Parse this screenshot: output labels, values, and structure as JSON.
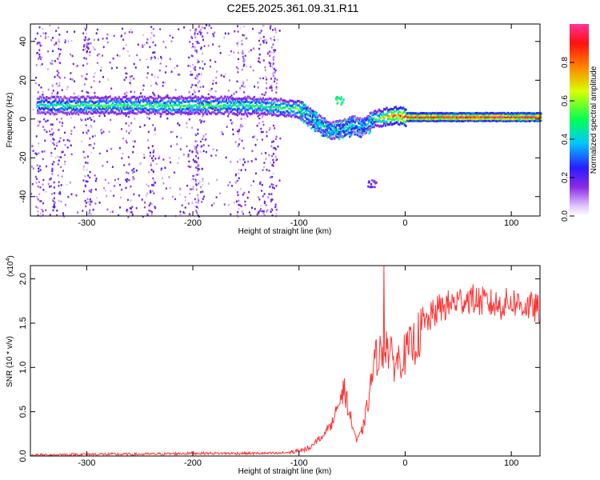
{
  "title": "C2E5.2025.361.09.31.R11",
  "chart_data": [
    {
      "type": "heatmap",
      "description_free": true,
      "xlabel": "Height of straight line (km)",
      "ylabel": "Frequency (Hz)",
      "xlim": [
        -353,
        127
      ],
      "ylim": [
        -50,
        49
      ],
      "xticks": [
        -300,
        -200,
        -100,
        0,
        100
      ],
      "xtick_labels": [
        "-300",
        "-200",
        "-100",
        "0",
        "100"
      ],
      "yticks": [
        -40,
        -20,
        0,
        20,
        40
      ],
      "ytick_labels": [
        "-40",
        "-20",
        "0",
        "20",
        "40"
      ],
      "colorbar": {
        "label": "Normalized spectral amplitude",
        "range": [
          0,
          1
        ],
        "ticks": [
          0.0,
          0.2,
          0.4,
          0.6,
          0.8
        ],
        "tick_labels": [
          "0.0",
          "0.2",
          "0.4",
          "0.6",
          "0.8"
        ]
      },
      "ridge": {
        "x": [
          -345,
          -300,
          -250,
          -200,
          -150,
          -120,
          -100,
          -90,
          -80,
          -70,
          -60,
          -50,
          -40,
          -30,
          -20,
          -10,
          0,
          50,
          100,
          127
        ],
        "freq": [
          7,
          7,
          7,
          7,
          7,
          6,
          5,
          1,
          -3,
          -6,
          -5,
          -3,
          -4,
          0,
          1,
          2,
          1,
          1,
          1,
          1
        ],
        "amplitude": [
          0.45,
          0.5,
          0.5,
          0.5,
          0.5,
          0.5,
          0.55,
          0.5,
          0.45,
          0.45,
          0.45,
          0.4,
          0.4,
          0.5,
          0.7,
          0.8,
          0.9,
          0.95,
          0.95,
          0.95
        ]
      },
      "secondary_blobs": [
        {
          "x": -62,
          "freq": 10,
          "amplitude": 0.55
        },
        {
          "x": -32,
          "freq": -33,
          "amplitude": 0.2
        }
      ],
      "noise_region": {
        "x_from": -353,
        "x_to": -118,
        "freq_from": -50,
        "freq_to": 49,
        "amplitude": 0.15
      }
    },
    {
      "type": "line",
      "xlabel": "Height of straight line (km)",
      "ylabel": "SNR (10 * v/v)",
      "scale_label": "(x10",
      "scale_exponent": "4",
      "scale_suffix": ")",
      "xlim": [
        -353,
        127
      ],
      "ylim": [
        0,
        2.15
      ],
      "xticks": [
        -300,
        -200,
        -100,
        0,
        100
      ],
      "xtick_labels": [
        "-300",
        "-200",
        "-100",
        "0",
        "100"
      ],
      "yticks": [
        0.0,
        0.5,
        1.0,
        1.5,
        2.0
      ],
      "ytick_labels": [
        "0.0",
        "0.5",
        "1.0",
        "1.5",
        "2.0"
      ],
      "color": "#ff3333",
      "x": [
        -353,
        -300,
        -250,
        -200,
        -150,
        -120,
        -100,
        -90,
        -80,
        -70,
        -62,
        -57,
        -52,
        -45,
        -40,
        -35,
        -30,
        -25,
        -22,
        -20,
        -18,
        -15,
        -10,
        -5,
        0,
        10,
        20,
        30,
        40,
        50,
        60,
        70,
        80,
        90,
        100,
        110,
        120,
        127
      ],
      "snr": [
        0.01,
        0.02,
        0.02,
        0.03,
        0.03,
        0.03,
        0.05,
        0.1,
        0.2,
        0.35,
        0.6,
        0.75,
        0.45,
        0.15,
        0.3,
        0.6,
        1.0,
        1.2,
        1.1,
        1.25,
        1.3,
        1.15,
        1.05,
        1.1,
        1.15,
        1.3,
        1.5,
        1.65,
        1.7,
        1.75,
        1.78,
        1.75,
        1.72,
        1.7,
        1.75,
        1.7,
        1.68,
        1.65
      ],
      "spike": {
        "x": -20,
        "snr": 2.15
      }
    }
  ]
}
